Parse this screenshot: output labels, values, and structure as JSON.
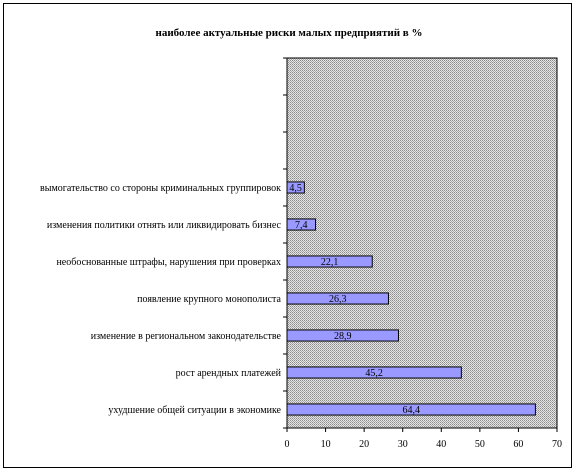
{
  "chart_data": {
    "type": "bar",
    "orientation": "horizontal",
    "title": "наиболее актуальные риски малых предприятий в %",
    "categories": [
      "ухудшение общей ситуации в экономике",
      "рост арендных платежей",
      "изменение в региональном законодательстве",
      "появление крупного монополиста",
      "необоснованные штрафы, нарушения при проверках",
      "изменения политики отнять или ликвидировать бизнес",
      "вымогательство со стороны криминальных группировок"
    ],
    "values": [
      64.4,
      45.2,
      28.9,
      26.3,
      22.1,
      7.4,
      4.5
    ],
    "value_labels": [
      "64,4",
      "45,2",
      "28,9",
      "26,3",
      "22,1",
      "7,4",
      "4,5"
    ],
    "xlim": [
      0,
      70
    ],
    "xticks": [
      0,
      10,
      20,
      30,
      40,
      50,
      60,
      70
    ],
    "empty_slots": 3,
    "grid": false,
    "legend": "none",
    "colors": {
      "bar_fill": "#9999ff",
      "bar_stroke": "#000000",
      "plot_bg": "#c0c0c0",
      "label_bg": "#9999ff"
    }
  }
}
